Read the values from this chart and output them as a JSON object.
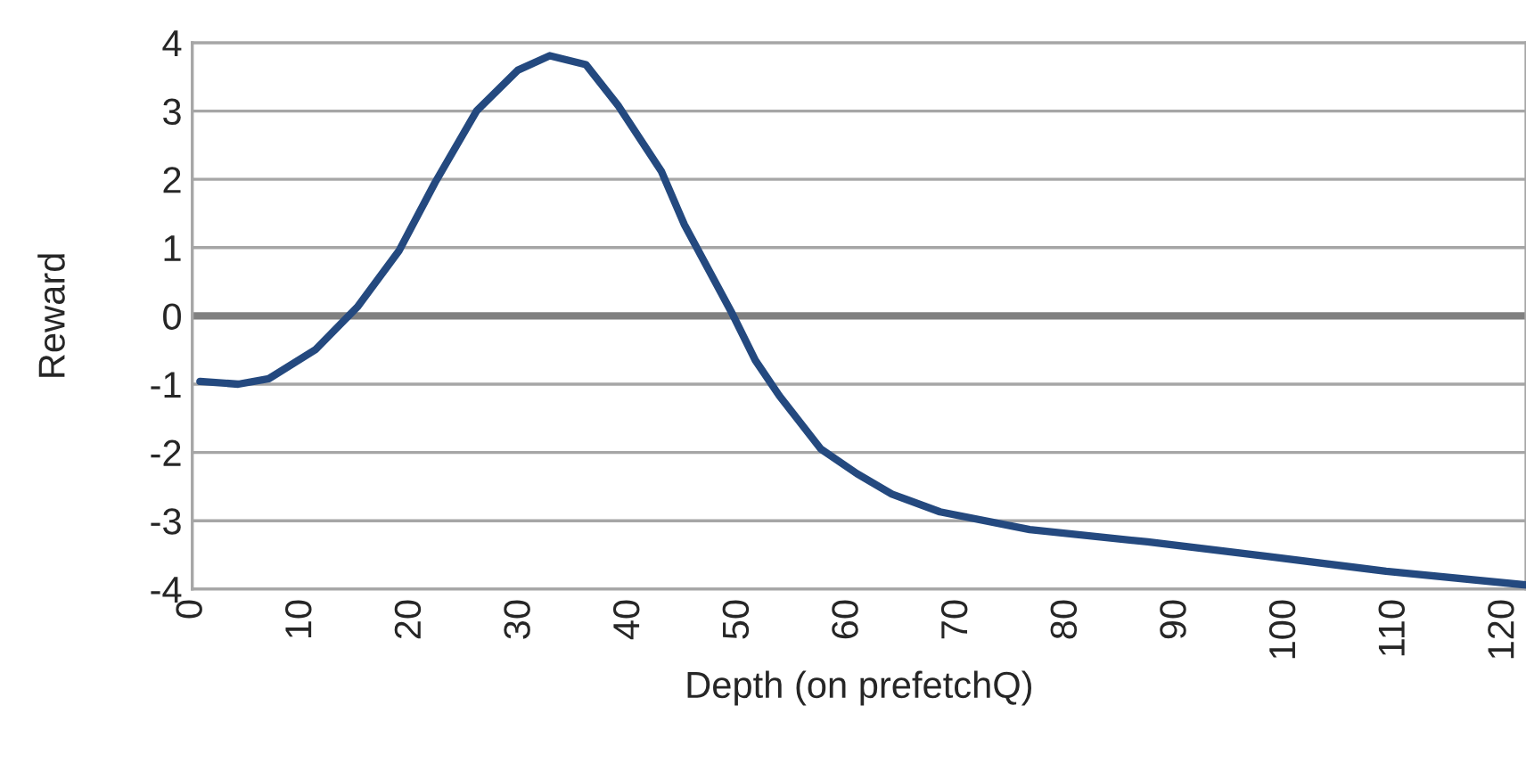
{
  "chart_data": {
    "type": "line",
    "xlabel": "Depth (on prefetchQ)",
    "ylabel": "Reward",
    "x": [
      0.7,
      4.2,
      7,
      11.3,
      15.1,
      18.9,
      22.2,
      26,
      29.8,
      32.7,
      36,
      39,
      42.9,
      45,
      49.4,
      51.5,
      53.7,
      57.5,
      60.8,
      64,
      68.4,
      76.6,
      87.4,
      98.3,
      109.2,
      122
    ],
    "series": [
      {
        "color": "#24497f",
        "values": [
          -0.96,
          -1.0,
          -0.92,
          -0.49,
          0.13,
          0.95,
          1.95,
          3.0,
          3.6,
          3.81,
          3.68,
          3.07,
          2.12,
          1.34,
          0.03,
          -0.65,
          -1.17,
          -1.95,
          -2.31,
          -2.61,
          -2.87,
          -3.13,
          -3.31,
          -3.52,
          -3.74,
          -3.94
        ]
      }
    ],
    "xlim": [
      0,
      122
    ],
    "xticks": [
      0,
      10,
      20,
      30,
      40,
      50,
      60,
      70,
      80,
      90,
      100,
      110,
      120
    ],
    "ylim": [
      -4,
      4
    ],
    "yticks": [
      -4,
      -3,
      -2,
      -1,
      0,
      1,
      2,
      3,
      4
    ],
    "grid": "y",
    "marker": "none",
    "line_style": "solid",
    "ref_lines": [
      {
        "axis": "y",
        "value": 0,
        "color": "#808080"
      }
    ]
  }
}
